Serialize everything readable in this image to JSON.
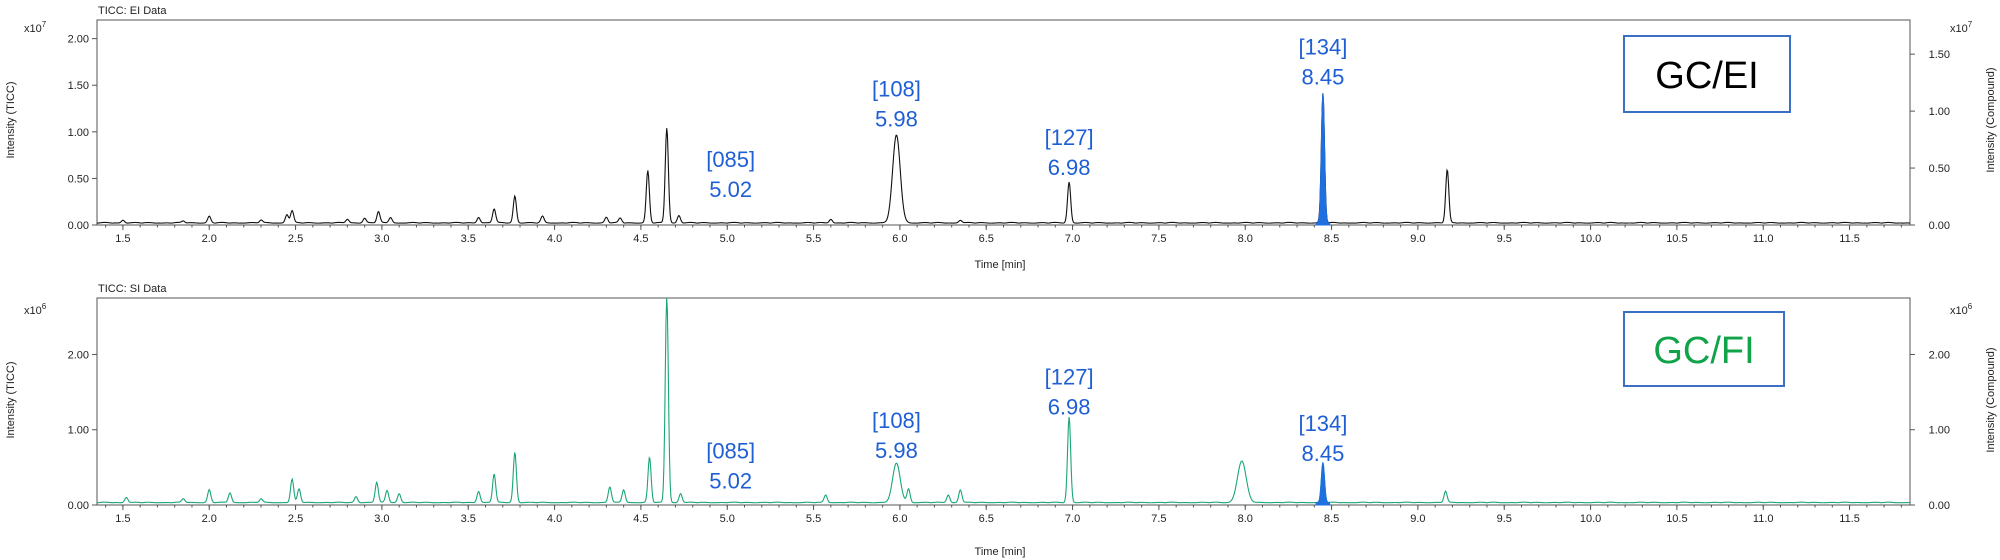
{
  "colors": {
    "ei_trace": "#111111",
    "si_trace": "#1aa57a",
    "highlight_peak": "#1f6fe0",
    "peak_label": "#1f5fd6",
    "box_border": "#3b6fc4",
    "ei_box_text": "#000000",
    "si_box_text": "#11a34a"
  },
  "chart_data": [
    {
      "type": "line",
      "title": "TICC: EI Data",
      "xlabel": "Time [min]",
      "ylabel_left": "Intensity (TICC)",
      "ylabel_right": "Intensity (Compound)",
      "left_multiplier": "x10",
      "left_exponent": "7",
      "right_multiplier": "x10",
      "right_exponent": "7",
      "xlim": [
        1.35,
        11.85
      ],
      "x_ticks": [
        "1.5",
        "2.0",
        "2.5",
        "3.0",
        "3.5",
        "4.0",
        "4.5",
        "5.0",
        "5.5",
        "6.0",
        "6.5",
        "7.0",
        "7.5",
        "8.0",
        "8.5",
        "9.0",
        "9.5",
        "10.0",
        "10.5",
        "11.0",
        "11.5"
      ],
      "ylim": [
        0,
        2.2
      ],
      "y_ticks": [
        "0.00",
        "0.50",
        "1.00",
        "1.50",
        "2.00"
      ],
      "ylim_right": [
        0,
        1.8
      ],
      "y_ticks_right": [
        "0.00",
        "0.50",
        "1.00",
        "1.50"
      ],
      "box_label": "GC/EI",
      "baseline": 0.02,
      "peaks": [
        {
          "x": 1.5,
          "y": 0.03
        },
        {
          "x": 1.85,
          "y": 0.02
        },
        {
          "x": 2.0,
          "y": 0.07
        },
        {
          "x": 2.3,
          "y": 0.03
        },
        {
          "x": 2.45,
          "y": 0.09
        },
        {
          "x": 2.48,
          "y": 0.13
        },
        {
          "x": 2.8,
          "y": 0.04
        },
        {
          "x": 2.9,
          "y": 0.05
        },
        {
          "x": 2.98,
          "y": 0.12
        },
        {
          "x": 3.05,
          "y": 0.06
        },
        {
          "x": 3.56,
          "y": 0.06
        },
        {
          "x": 3.65,
          "y": 0.15
        },
        {
          "x": 3.77,
          "y": 0.29
        },
        {
          "x": 3.93,
          "y": 0.07
        },
        {
          "x": 4.3,
          "y": 0.06
        },
        {
          "x": 4.38,
          "y": 0.05
        },
        {
          "x": 4.54,
          "y": 0.56
        },
        {
          "x": 4.65,
          "y": 1.02
        },
        {
          "x": 4.72,
          "y": 0.08
        },
        {
          "x": 5.6,
          "y": 0.04
        },
        {
          "x": 5.98,
          "y": 0.94
        },
        {
          "x": 6.35,
          "y": 0.03
        },
        {
          "x": 6.98,
          "y": 0.44
        },
        {
          "x": 8.45,
          "y": 1.39
        },
        {
          "x": 9.17,
          "y": 0.57
        }
      ],
      "highlight": {
        "x": 8.45,
        "y": 1.39
      },
      "annotations": [
        {
          "id": "[085]",
          "time": "5.02",
          "x": 5.02,
          "y": 0.62
        },
        {
          "id": "[108]",
          "time": "5.98",
          "x": 5.98,
          "y": 1.38
        },
        {
          "id": "[127]",
          "time": "6.98",
          "x": 6.98,
          "y": 0.86
        },
        {
          "id": "[134]",
          "time": "8.45",
          "x": 8.45,
          "y": 1.83
        }
      ]
    },
    {
      "type": "line",
      "title": "TICC: SI Data",
      "xlabel": "Time [min]",
      "ylabel_left": "Intensity (TICC)",
      "ylabel_right": "Intensity (Compound)",
      "left_multiplier": "x10",
      "left_exponent": "6",
      "right_multiplier": "x10",
      "right_exponent": "6",
      "xlim": [
        1.35,
        11.85
      ],
      "x_ticks": [
        "1.5",
        "2.0",
        "2.5",
        "3.0",
        "3.5",
        "4.0",
        "4.5",
        "5.0",
        "5.5",
        "6.0",
        "6.5",
        "7.0",
        "7.5",
        "8.0",
        "8.5",
        "9.0",
        "9.5",
        "10.0",
        "10.5",
        "11.0",
        "11.5"
      ],
      "ylim": [
        0,
        2.75
      ],
      "y_ticks": [
        "0.00",
        "1.00",
        "2.00"
      ],
      "ylim_right": [
        0,
        2.75
      ],
      "y_ticks_right": [
        "0.00",
        "1.00",
        "2.00"
      ],
      "box_label": "GC/FI",
      "baseline": 0.03,
      "peaks": [
        {
          "x": 1.52,
          "y": 0.07
        },
        {
          "x": 1.85,
          "y": 0.05
        },
        {
          "x": 2.0,
          "y": 0.17
        },
        {
          "x": 2.12,
          "y": 0.13
        },
        {
          "x": 2.3,
          "y": 0.05
        },
        {
          "x": 2.48,
          "y": 0.31
        },
        {
          "x": 2.52,
          "y": 0.18
        },
        {
          "x": 2.85,
          "y": 0.08
        },
        {
          "x": 2.97,
          "y": 0.27
        },
        {
          "x": 3.03,
          "y": 0.16
        },
        {
          "x": 3.1,
          "y": 0.12
        },
        {
          "x": 3.56,
          "y": 0.15
        },
        {
          "x": 3.65,
          "y": 0.38
        },
        {
          "x": 3.77,
          "y": 0.67
        },
        {
          "x": 4.32,
          "y": 0.21
        },
        {
          "x": 4.4,
          "y": 0.17
        },
        {
          "x": 4.55,
          "y": 0.6
        },
        {
          "x": 4.65,
          "y": 2.75
        },
        {
          "x": 4.73,
          "y": 0.12
        },
        {
          "x": 5.57,
          "y": 0.1
        },
        {
          "x": 5.98,
          "y": 0.52
        },
        {
          "x": 6.05,
          "y": 0.18
        },
        {
          "x": 6.28,
          "y": 0.1
        },
        {
          "x": 6.35,
          "y": 0.17
        },
        {
          "x": 6.98,
          "y": 1.14
        },
        {
          "x": 7.98,
          "y": 0.55
        },
        {
          "x": 8.45,
          "y": 0.53
        },
        {
          "x": 9.16,
          "y": 0.15
        }
      ],
      "highlight": {
        "x": 8.45,
        "y": 0.53
      },
      "annotations": [
        {
          "id": "[085]",
          "time": "5.02",
          "x": 5.02,
          "y": 0.62
        },
        {
          "id": "[108]",
          "time": "5.98",
          "x": 5.98,
          "y": 1.02
        },
        {
          "id": "[127]",
          "time": "6.98",
          "x": 6.98,
          "y": 1.6
        },
        {
          "id": "[134]",
          "time": "8.45",
          "x": 8.45,
          "y": 0.98
        }
      ]
    }
  ]
}
